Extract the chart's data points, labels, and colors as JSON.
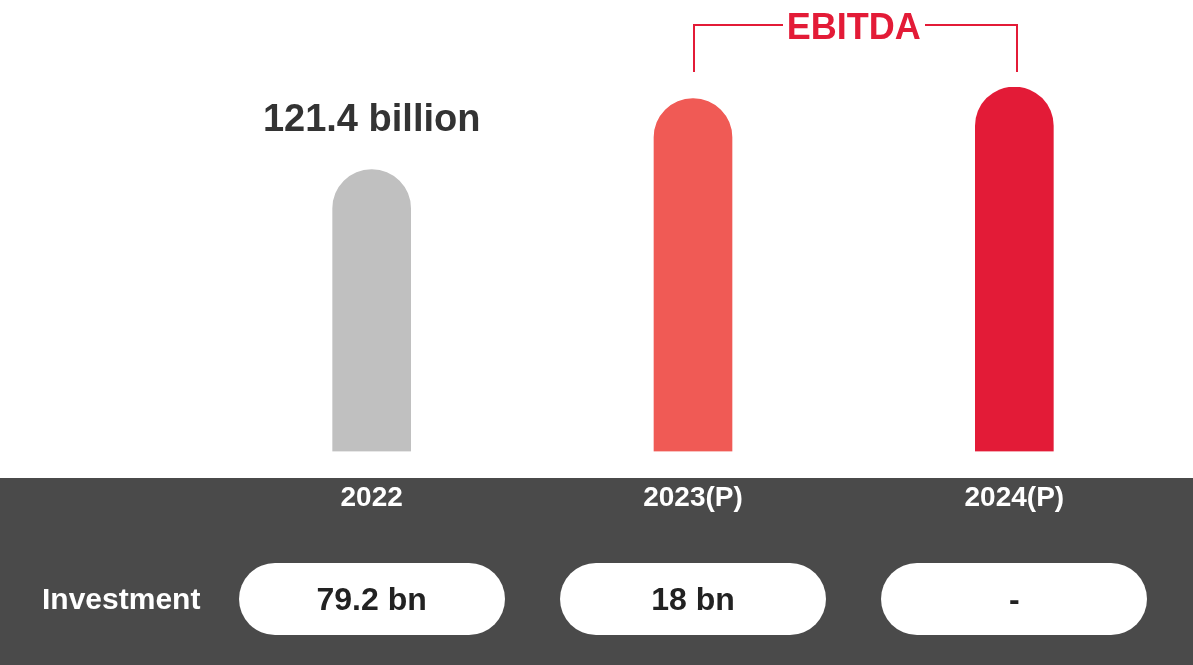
{
  "chart_data": {
    "type": "bar",
    "categories": [
      "2022",
      "2023(P)",
      "2024(P)"
    ],
    "values": [
      121.4,
      152,
      157
    ],
    "colors": [
      "#c0c0c0",
      "#f05a55",
      "#e31b37"
    ],
    "value_labels": [
      "121.4 billion",
      null,
      null
    ],
    "annotations": [
      "EBITDA",
      "Investment",
      "79.2 bn",
      "18 bn",
      "-"
    ],
    "grid": false,
    "legend": false
  }
}
